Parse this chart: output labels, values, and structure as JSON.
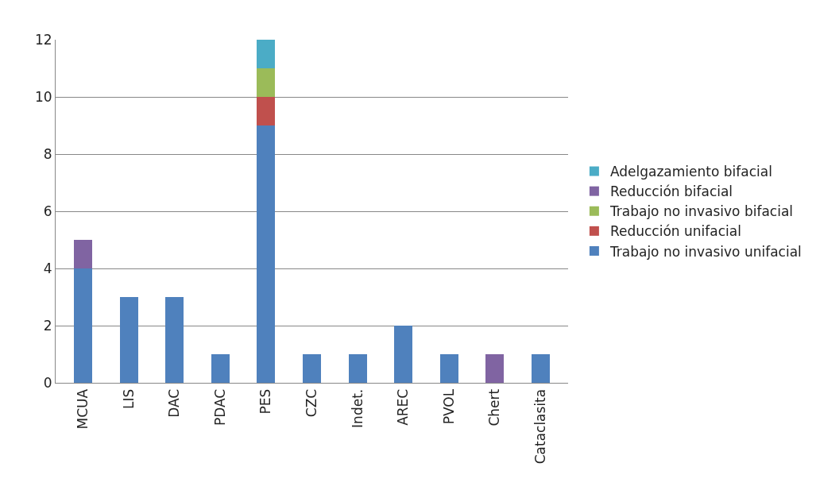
{
  "chart_data": {
    "type": "bar",
    "stacked": true,
    "categories": [
      "MCUA",
      "LIS",
      "DAC",
      "PDAC",
      "PES",
      "CZC",
      "Indet.",
      "AREC",
      "PVOL",
      "Chert",
      "Cataclasita"
    ],
    "series": [
      {
        "name": "Trabajo no invasivo unifacial",
        "color": "#4f81bd",
        "values": [
          4,
          3,
          3,
          1,
          9,
          1,
          1,
          2,
          1,
          0,
          1
        ]
      },
      {
        "name": "Reducción unifacial",
        "color": "#c0504d",
        "values": [
          0,
          0,
          0,
          0,
          1,
          0,
          0,
          0,
          0,
          0,
          0
        ]
      },
      {
        "name": "Trabajo no invasivo bifacial",
        "color": "#9bbb59",
        "values": [
          0,
          0,
          0,
          0,
          1,
          0,
          0,
          0,
          0,
          0,
          0
        ]
      },
      {
        "name": "Reducción bifacial",
        "color": "#8064a2",
        "values": [
          1,
          0,
          0,
          0,
          0,
          0,
          0,
          0,
          0,
          1,
          0
        ]
      },
      {
        "name": "Adelgazamiento bifacial",
        "color": "#4bacc6",
        "values": [
          0,
          0,
          0,
          0,
          1,
          0,
          0,
          0,
          0,
          0,
          0
        ]
      }
    ],
    "ylim": [
      0,
      12
    ],
    "yticks": [
      0,
      2,
      4,
      6,
      8,
      10,
      12
    ],
    "grid": "y",
    "legend": "right"
  }
}
